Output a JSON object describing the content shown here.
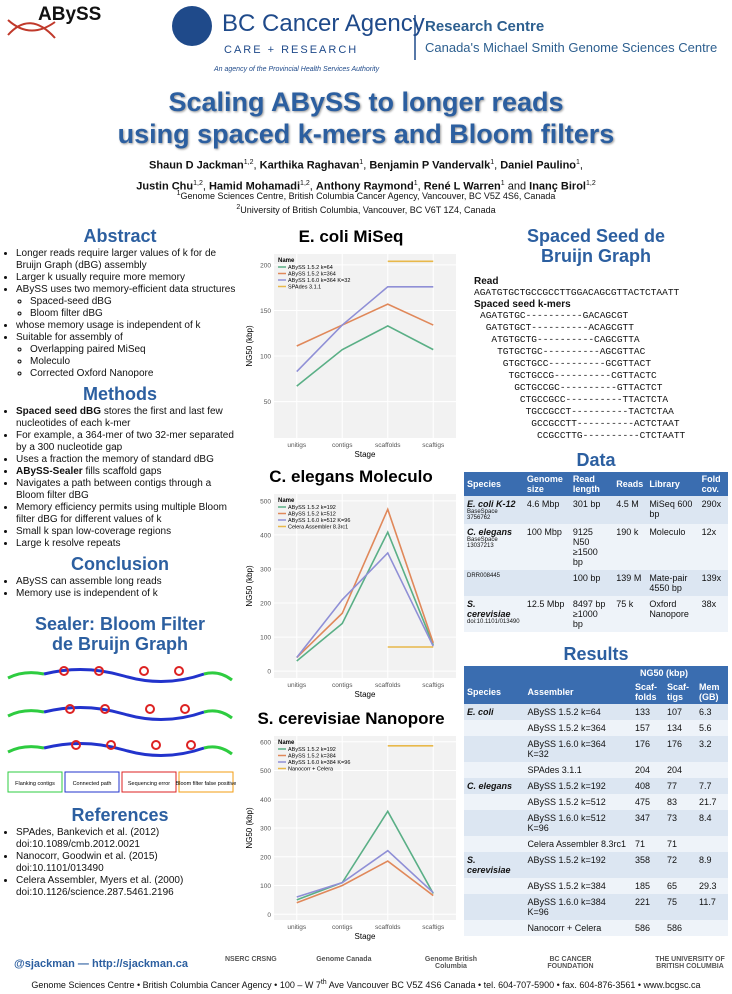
{
  "header": {
    "logo": "ABySS",
    "agency": "BC Cancer Agency",
    "agency_sub": "CARE + RESEARCH",
    "agency_note": "An agency of the Provincial Health Services Authority",
    "centre": "Research Centre",
    "centre_sub": "Canada's Michael Smith Genome Sciences Centre"
  },
  "title": [
    "Scaling ABySS to longer reads",
    "using spaced k-mers and Bloom filters"
  ],
  "authors": [
    [
      {
        "name": "Shaun D Jackman",
        "sup": "1,2",
        "after": ","
      },
      {
        "name": "Karthika Raghavan",
        "sup": "1",
        "after": ","
      },
      {
        "name": "Benjamin P Vandervalk",
        "sup": "1",
        "after": ","
      },
      {
        "name": "Daniel Paulino",
        "sup": "1",
        "after": ","
      }
    ],
    [
      {
        "name": "Justin Chu",
        "sup": "1,2",
        "after": ","
      },
      {
        "name": "Hamid Mohamadi",
        "sup": "1,2",
        "after": ","
      },
      {
        "name": "Anthony Raymond",
        "sup": "1",
        "after": ","
      },
      {
        "name": "René L Warren",
        "sup": "1",
        "after": "and"
      },
      {
        "name": "Inanç Birol",
        "sup": "1,2"
      }
    ]
  ],
  "affiliations": [
    {
      "sup": "1",
      "text": "Genome Sciences Centre, British Columbia Cancer Agency, Vancouver, BC V5Z 4S6, Canada"
    },
    {
      "sup": "2",
      "text": "University of British Columbia, Vancouver, BC V6T 1Z4, Canada"
    }
  ],
  "abstract": {
    "heading": "Abstract",
    "items": [
      {
        "text": "Longer reads require larger values of k for de Bruijn Graph (dBG) assembly"
      },
      {
        "text": "Larger k usually require more memory"
      },
      {
        "text": "ABySS uses two memory-efficient data structures",
        "sub": [
          "Spaced-seed dBG",
          "Bloom filter dBG"
        ]
      },
      {
        "text": "whose memory usage is independent of k"
      },
      {
        "text": "Suitable for assembly of",
        "sub": [
          "Overlapping paired MiSeq",
          "Moleculo",
          "Corrected Oxford Nanopore"
        ]
      }
    ]
  },
  "methods": {
    "heading": "Methods",
    "items": [
      {
        "bold": "Spaced seed dBG",
        "text": "stores the first and last few nucleotides of each k-mer"
      },
      {
        "text": "For example, a 364-mer of two 32-mer separated by a 300 nucleotide gap"
      },
      {
        "text": "Uses a fraction the memory of standard dBG"
      },
      {
        "bold": "ABySS-Sealer",
        "text": "fills scaffold gaps"
      },
      {
        "text": "Navigates a path between contigs through a Bloom filter dBG"
      },
      {
        "text": "Memory efficiency permits using multiple Bloom filter dBG for different values of k"
      },
      {
        "text": "Small k span low-coverage regions"
      },
      {
        "text": "Large k resolve repeats"
      }
    ]
  },
  "conclusion": {
    "heading": "Conclusion",
    "items": [
      {
        "text": "ABySS can assemble long reads"
      },
      {
        "text": "Memory use is independent of k"
      }
    ]
  },
  "sealer": {
    "heading": "Sealer: Bloom Filter de Bruijn Graph",
    "legend": [
      "Flanking contigs",
      "Connected path",
      "Sequencing error",
      "Bloom filter false positive"
    ]
  },
  "references": {
    "heading": "References",
    "items": [
      [
        "SPAdes, Bankevich et al. (2012)",
        "doi:10.1089/cmb.2012.0021"
      ],
      [
        "Nanocorr, Goodwin et al. (2015)",
        "doi:10.1101/013490"
      ],
      [
        "Celera Assembler, Myers et al. (2000)",
        "doi:10.1126/science.287.5461.2196"
      ]
    ]
  },
  "contact": "@sjackman — http://sjackman.ca",
  "spaced_seed": {
    "heading": "Spaced Seed de Bruijn Graph",
    "read_label": "Read",
    "read": "AGATGTGCTGCCGCCTTGGACAGCGTTACTCTAATT",
    "kmers_label": "Spaced seed k-mers",
    "kmers": [
      "AGATGTGC----------GACAGCGT",
      " GATGTGCT----------ACAGCGTT",
      "  ATGTGCTG----------CAGCGTTA",
      "   TGTGCTGC----------AGCGTTAC",
      "    GTGCTGCC----------GCGTTACT",
      "     TGCTGCCG----------CGTTACTC",
      "      GCTGCCGC----------GTTACTCT",
      "       CTGCCGCC----------TTACTCTA",
      "        TGCCGCCT----------TACTCTAA",
      "         GCCGCCTT----------ACTCTAAT",
      "          CCGCCTTG----------CTCTAATT"
    ]
  },
  "data_table": {
    "heading": "Data",
    "columns": [
      "Species",
      "Genome size",
      "Read length",
      "Reads",
      "Library",
      "Fold cov."
    ],
    "rows": [
      {
        "species": "E. coli K-12",
        "note": "BaseSpace 3756762",
        "cells": [
          "4.6 Mbp",
          "301 bp",
          "4.5 M",
          "MiSeq 600 bp",
          "290x"
        ]
      },
      {
        "species": "C. elegans",
        "note": "BaseSpace 13037213",
        "cells": [
          "100 Mbp",
          "9125 N50 ≥1500 bp",
          "190 k",
          "Moleculo",
          "12x"
        ]
      },
      {
        "note": "DRR008445",
        "cells": [
          null,
          "100 bp",
          "139 M",
          "Mate-pair 4550 bp",
          "139x"
        ]
      },
      {
        "species": "S. cerevisiae",
        "note": "doi:10.1101/013490",
        "cells": [
          "12.5 Mbp",
          "8497 bp ≥1000 bp",
          "75 k",
          "Oxford Nanopore",
          "38x"
        ]
      }
    ]
  },
  "results_table": {
    "heading": "Results",
    "group": "NG50 (kbp)",
    "columns": [
      "Species",
      "Assembler",
      "Scaf-folds",
      "Scaf-tigs",
      "Mem (GB)"
    ],
    "rows": [
      {
        "species": "E. coli",
        "cells": [
          "ABySS 1.5.2 k=64",
          "133",
          "107",
          "6.3"
        ]
      },
      {
        "cells": [
          "ABySS 1.5.2 k=364",
          "157",
          "134",
          "5.6"
        ]
      },
      {
        "cells": [
          "ABySS 1.6.0 k=364 K=32",
          "176",
          "176",
          "3.2"
        ]
      },
      {
        "cells": [
          "SPAdes 3.1.1",
          "204",
          "204",
          null
        ]
      },
      {
        "species": "C. elegans",
        "cells": [
          "ABySS 1.5.2 k=192",
          "408",
          "77",
          "7.7"
        ]
      },
      {
        "cells": [
          "ABySS 1.5.2 k=512",
          "475",
          "83",
          "21.7"
        ]
      },
      {
        "cells": [
          "ABySS 1.6.0 k=512 K=96",
          "347",
          "73",
          "8.4"
        ]
      },
      {
        "cells": [
          "Celera Assembler 8.3rc1",
          "71",
          "71",
          null
        ]
      },
      {
        "species": "S. cerevisiae",
        "cells": [
          "ABySS 1.5.2 k=192",
          "358",
          "72",
          "8.9"
        ]
      },
      {
        "cells": [
          "ABySS 1.5.2 k=384",
          "185",
          "65",
          "29.3"
        ]
      },
      {
        "cells": [
          "ABySS 1.6.0 k=384 K=96",
          "221",
          "75",
          "11.7"
        ]
      },
      {
        "cells": [
          "Nanocorr + Celera",
          "586",
          "586",
          null
        ]
      }
    ]
  },
  "chart_data": [
    {
      "type": "line",
      "title": "E. coli MiSeq",
      "x_label": "Stage",
      "y_label": "NG50 (kbp)",
      "categories": [
        "unitigs",
        "contigs",
        "scaffolds",
        "scaftigs"
      ],
      "ylim": [
        10,
        212
      ],
      "yticks": [
        50,
        100,
        150,
        200
      ],
      "grid": true,
      "legend_title": "Name",
      "legend": "top-left",
      "series": [
        {
          "name": "ABySS 1.5.2 k=64",
          "color": "#5aaf86",
          "values": [
            67,
            107,
            133,
            107
          ]
        },
        {
          "name": "ABySS 1.5.2 k=364",
          "color": "#e0885a",
          "values": [
            111,
            134,
            157,
            134
          ]
        },
        {
          "name": "ABySS 1.6.0 k=364 K=32",
          "color": "#8f8fd6",
          "values": [
            83,
            134,
            176,
            176
          ]
        },
        {
          "name": "SPAdes 3.1.1",
          "color": "#e8b84a",
          "values": [
            null,
            null,
            204,
            204
          ]
        }
      ]
    },
    {
      "type": "line",
      "title": "C. elegans Moleculo",
      "x_label": "Stage",
      "y_label": "NG50 (kbp)",
      "categories": [
        "unitigs",
        "contigs",
        "scaffolds",
        "scaftigs"
      ],
      "ylim": [
        -20,
        520
      ],
      "yticks": [
        0,
        100,
        200,
        300,
        400,
        500
      ],
      "grid": true,
      "legend_title": "Name",
      "legend": "top-left",
      "series": [
        {
          "name": "ABySS 1.5.2 k=192",
          "color": "#5aaf86",
          "values": [
            30,
            140,
            408,
            77
          ]
        },
        {
          "name": "ABySS 1.5.2 k=512",
          "color": "#e0885a",
          "values": [
            40,
            170,
            475,
            83
          ]
        },
        {
          "name": "ABySS 1.6.0 k=512 K=96",
          "color": "#8f8fd6",
          "values": [
            40,
            210,
            347,
            73
          ]
        },
        {
          "name": "Celera Assembler 8.3rc1",
          "color": "#e8b84a",
          "values": [
            null,
            null,
            71,
            71
          ]
        }
      ]
    },
    {
      "type": "line",
      "title": "S. cerevisiae Nanopore",
      "x_label": "Stage",
      "y_label": "NG50 (kbp)",
      "categories": [
        "unitigs",
        "contigs",
        "scaffolds",
        "scaftigs"
      ],
      "ylim": [
        -20,
        620
      ],
      "yticks": [
        0,
        100,
        200,
        300,
        400,
        500,
        600
      ],
      "grid": true,
      "legend_title": "Name",
      "legend": "top-left",
      "series": [
        {
          "name": "ABySS 1.5.2 k=192",
          "color": "#5aaf86",
          "values": [
            50,
            110,
            358,
            72
          ]
        },
        {
          "name": "ABySS 1.5.2 k=384",
          "color": "#e0885a",
          "values": [
            40,
            100,
            185,
            65
          ]
        },
        {
          "name": "ABySS 1.6.0 k=384 K=96",
          "color": "#8f8fd6",
          "values": [
            60,
            110,
            221,
            75
          ]
        },
        {
          "name": "Nanocorr + Celera",
          "color": "#e8b84a",
          "values": [
            null,
            null,
            586,
            586
          ]
        }
      ]
    }
  ],
  "footer_logos": [
    "NSERC CRSNG",
    "Genome Canada",
    "Genome British Columbia",
    "BC CANCER FOUNDATION",
    "THE UNIVERSITY OF BRITISH COLUMBIA"
  ],
  "footer": {
    "before": "Genome Sciences Centre • British Columbia Cancer Agency • 100 – W 7",
    "sup": "th",
    "after": "Ave Vancouver BC V5Z 4S6 Canada • tel. 604-707-5900 • fax. 604-876-3561 • www.bcgsc.ca"
  }
}
